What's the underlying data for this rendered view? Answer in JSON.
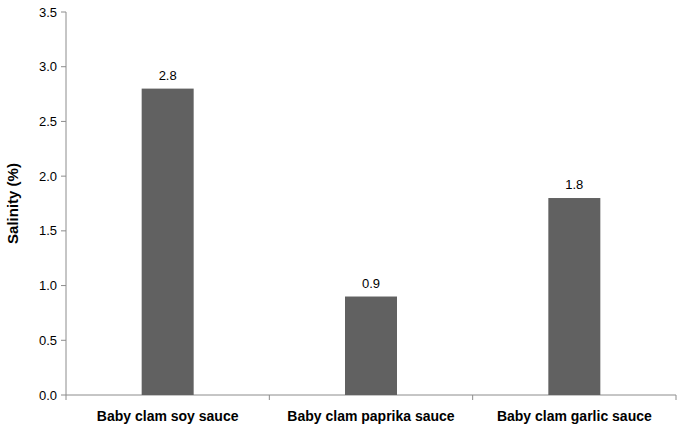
{
  "chart_data": {
    "type": "bar",
    "categories": [
      "Baby clam soy sauce",
      "Baby clam paprika sauce",
      "Baby clam garlic sauce"
    ],
    "values": [
      2.8,
      0.9,
      1.8
    ],
    "color": "#616161",
    "y_label": "Salinity (%)",
    "ylim": [
      0,
      3.5
    ],
    "yticks": [
      {
        "value": 0,
        "label": "0.0"
      },
      {
        "value": 0.5,
        "label": "0.5"
      },
      {
        "value": 1,
        "label": "1.0"
      },
      {
        "value": 1.5,
        "label": "1.5"
      },
      {
        "value": 2,
        "label": "2.0"
      },
      {
        "value": 2.5,
        "label": "2.5"
      },
      {
        "value": 3,
        "label": "3.0"
      },
      {
        "value": 3.5,
        "label": "3.5"
      }
    ],
    "data_labels": true,
    "grid": false
  }
}
